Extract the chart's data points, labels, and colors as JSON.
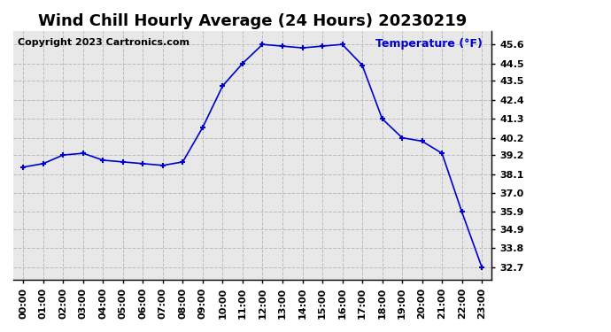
{
  "title": "Wind Chill Hourly Average (24 Hours) 20230219",
  "copyright": "Copyright 2023 Cartronics.com",
  "ylabel_text": "Temperature (°F)",
  "ylabel_color": "#0000cc",
  "background_color": "#ffffff",
  "plot_bg_color": "#e8e8e8",
  "line_color": "#0000cc",
  "marker_color": "#0000cc",
  "grid_color": "#bbbbbb",
  "hours": [
    "00:00",
    "01:00",
    "02:00",
    "03:00",
    "04:00",
    "05:00",
    "06:00",
    "07:00",
    "08:00",
    "09:00",
    "10:00",
    "11:00",
    "12:00",
    "13:00",
    "14:00",
    "15:00",
    "16:00",
    "17:00",
    "18:00",
    "19:00",
    "20:00",
    "21:00",
    "22:00",
    "23:00"
  ],
  "values": [
    38.5,
    38.7,
    39.2,
    39.3,
    38.9,
    38.8,
    38.7,
    38.6,
    38.8,
    40.8,
    43.2,
    44.5,
    45.6,
    45.5,
    45.4,
    45.5,
    45.6,
    44.4,
    41.3,
    40.2,
    40.0,
    39.3,
    35.9,
    32.7
  ],
  "ylim_min": 32.0,
  "ylim_max": 46.4,
  "yticks": [
    32.7,
    33.8,
    34.9,
    35.9,
    37.0,
    38.1,
    39.2,
    40.2,
    41.3,
    42.4,
    43.5,
    44.5,
    45.6
  ],
  "title_fontsize": 13,
  "tick_fontsize": 8,
  "copyright_fontsize": 8
}
